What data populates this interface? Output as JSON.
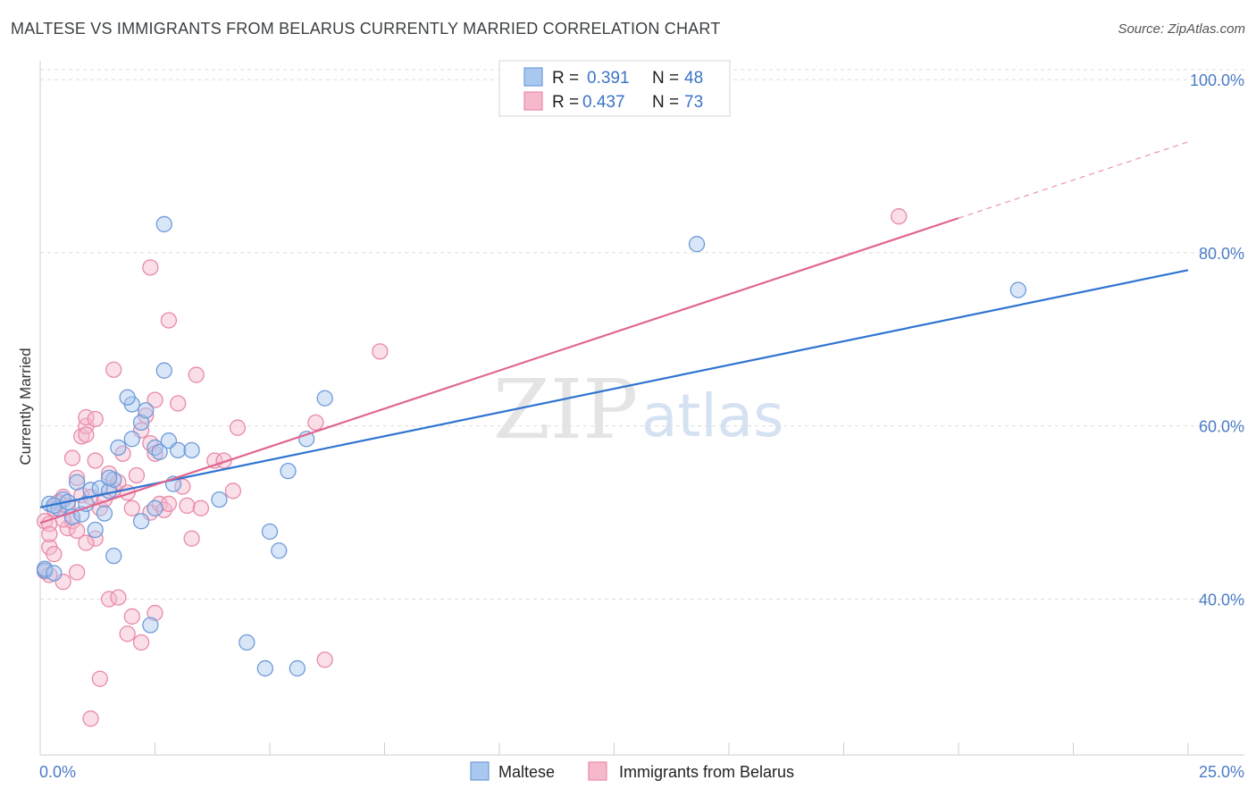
{
  "title": "MALTESE VS IMMIGRANTS FROM BELARUS CURRENTLY MARRIED CORRELATION CHART",
  "source": "Source: ZipAtlas.com",
  "watermark": {
    "part1": "ZIP",
    "part2": "atlas"
  },
  "colors": {
    "blue_fill": "#a9c8f0",
    "blue_stroke": "#6f9bd9",
    "blue_line": "#2f74d0",
    "pink_fill": "#f5b9cb",
    "pink_stroke": "#e98aa8",
    "pink_line": "#e06690",
    "grid": "#dcdcdc",
    "axis_text": "#4a7cc7"
  },
  "legend": {
    "rows": [
      {
        "r_label": "R =",
        "r_value": "0.391",
        "n_label": "N =",
        "n_value": "48"
      },
      {
        "r_label": "R =",
        "r_value": "0.437",
        "n_label": "N =",
        "n_value": "73"
      }
    ]
  },
  "bottom_legend": {
    "maltese": "Maltese",
    "belarus": "Immigrants from Belarus"
  },
  "chart_data": {
    "type": "scatter",
    "title": "MALTESE VS IMMIGRANTS FROM BELARUS CURRENTLY MARRIED CORRELATION CHART",
    "xlabel": "",
    "ylabel": "Currently Married",
    "xlim": [
      0,
      25
    ],
    "ylim": [
      22,
      103
    ],
    "x_tick_labels": {
      "left": "0.0%",
      "right": "25.0%"
    },
    "y_ticks": [
      {
        "value": 100,
        "label": "100.0%"
      },
      {
        "value": 80,
        "label": "80.0%"
      },
      {
        "value": 60,
        "label": "60.0%"
      },
      {
        "value": 40,
        "label": "40.0%"
      }
    ],
    "series": [
      {
        "name": "Maltese",
        "color": "blue",
        "r": 0.391,
        "n": 48,
        "trend": {
          "x0": 0,
          "y0": 50.6,
          "x1": 25,
          "y1": 78.0
        },
        "points": [
          [
            0.2,
            51
          ],
          [
            0.4,
            50.5
          ],
          [
            0.5,
            51.5
          ],
          [
            0.3,
            50.8
          ],
          [
            0.6,
            51.2
          ],
          [
            0.7,
            49.5
          ],
          [
            0.8,
            53.5
          ],
          [
            0.9,
            49.8
          ],
          [
            1.0,
            51.0
          ],
          [
            1.1,
            52.6
          ],
          [
            1.3,
            52.8
          ],
          [
            1.4,
            49.9
          ],
          [
            1.5,
            52.5
          ],
          [
            1.2,
            48.0
          ],
          [
            1.6,
            53.8
          ],
          [
            1.5,
            54
          ],
          [
            1.6,
            45.0
          ],
          [
            1.7,
            57.5
          ],
          [
            2.0,
            62.5
          ],
          [
            1.9,
            63.3
          ],
          [
            2.0,
            58.5
          ],
          [
            2.2,
            60.4
          ],
          [
            2.3,
            61.8
          ],
          [
            2.5,
            57.5
          ],
          [
            2.6,
            57.0
          ],
          [
            2.5,
            50.5
          ],
          [
            2.2,
            49.0
          ],
          [
            2.4,
            37.0
          ],
          [
            2.8,
            58.3
          ],
          [
            2.9,
            53.3
          ],
          [
            3.0,
            57.2
          ],
          [
            3.3,
            57.2
          ],
          [
            2.7,
            66.4
          ],
          [
            2.7,
            83.3
          ],
          [
            3.9,
            51.5
          ],
          [
            4.5,
            35.0
          ],
          [
            4.9,
            32.0
          ],
          [
            5.0,
            47.8
          ],
          [
            5.2,
            45.6
          ],
          [
            5.4,
            54.8
          ],
          [
            5.8,
            58.5
          ],
          [
            5.6,
            32.0
          ],
          [
            6.2,
            63.2
          ],
          [
            14.3,
            81.0
          ],
          [
            21.3,
            75.7
          ],
          [
            0.1,
            43.3
          ],
          [
            0.1,
            43.5
          ],
          [
            0.3,
            43.0
          ]
        ]
      },
      {
        "name": "Immigrants from Belarus",
        "color": "pink",
        "r": 0.437,
        "n": 73,
        "trend": {
          "x0": 0,
          "y0": 48.8,
          "x1": 20.0,
          "y1": 84.0
        },
        "trend_extension": {
          "x0": 20.0,
          "y0": 84.0,
          "x1": 25,
          "y1": 92.8
        },
        "points": [
          [
            0.1,
            49
          ],
          [
            0.2,
            48.7
          ],
          [
            0.3,
            50.5
          ],
          [
            0.4,
            51.2
          ],
          [
            0.5,
            51.8
          ],
          [
            0.6,
            50.8
          ],
          [
            0.6,
            48.2
          ],
          [
            0.7,
            49.0
          ],
          [
            0.8,
            47.9
          ],
          [
            0.9,
            52.0
          ],
          [
            0.8,
            54.0
          ],
          [
            0.7,
            56.3
          ],
          [
            0.9,
            58.8
          ],
          [
            1.0,
            60.0
          ],
          [
            1.0,
            61.0
          ],
          [
            1.2,
            56.0
          ],
          [
            1.1,
            51.8
          ],
          [
            1.2,
            47.0
          ],
          [
            1.0,
            46.5
          ],
          [
            1.3,
            50.5
          ],
          [
            1.4,
            51.5
          ],
          [
            1.5,
            54.5
          ],
          [
            1.6,
            52.7
          ],
          [
            1.7,
            53.5
          ],
          [
            1.8,
            56.8
          ],
          [
            1.9,
            52.3
          ],
          [
            2.0,
            50.5
          ],
          [
            2.1,
            54.3
          ],
          [
            2.2,
            59.5
          ],
          [
            2.4,
            58.0
          ],
          [
            2.5,
            56.8
          ],
          [
            2.3,
            61.2
          ],
          [
            2.5,
            63.0
          ],
          [
            2.4,
            50.0
          ],
          [
            2.6,
            51.0
          ],
          [
            2.7,
            50.3
          ],
          [
            2.8,
            51.0
          ],
          [
            3.1,
            53.0
          ],
          [
            3.2,
            50.8
          ],
          [
            3.3,
            47.0
          ],
          [
            3.5,
            50.5
          ],
          [
            3.8,
            56.0
          ],
          [
            4.0,
            56.0
          ],
          [
            4.2,
            52.5
          ],
          [
            4.3,
            59.8
          ],
          [
            1.6,
            66.5
          ],
          [
            2.4,
            78.3
          ],
          [
            2.8,
            72.2
          ],
          [
            3.4,
            65.9
          ],
          [
            3.0,
            62.6
          ],
          [
            1.2,
            60.8
          ],
          [
            1.0,
            59.0
          ],
          [
            0.4,
            51.2
          ],
          [
            0.5,
            49.2
          ],
          [
            0.2,
            46.0
          ],
          [
            0.3,
            45.2
          ],
          [
            0.5,
            42.0
          ],
          [
            0.8,
            43.1
          ],
          [
            1.5,
            40.0
          ],
          [
            1.7,
            40.2
          ],
          [
            1.9,
            36.0
          ],
          [
            2.0,
            38.0
          ],
          [
            2.2,
            35.0
          ],
          [
            2.5,
            38.4
          ],
          [
            1.3,
            30.8
          ],
          [
            1.1,
            26.2
          ],
          [
            6.0,
            60.4
          ],
          [
            6.2,
            33.0
          ],
          [
            7.4,
            68.6
          ],
          [
            18.7,
            84.2
          ],
          [
            0.1,
            43.2
          ],
          [
            0.2,
            42.8
          ],
          [
            0.2,
            47.5
          ]
        ]
      }
    ]
  }
}
